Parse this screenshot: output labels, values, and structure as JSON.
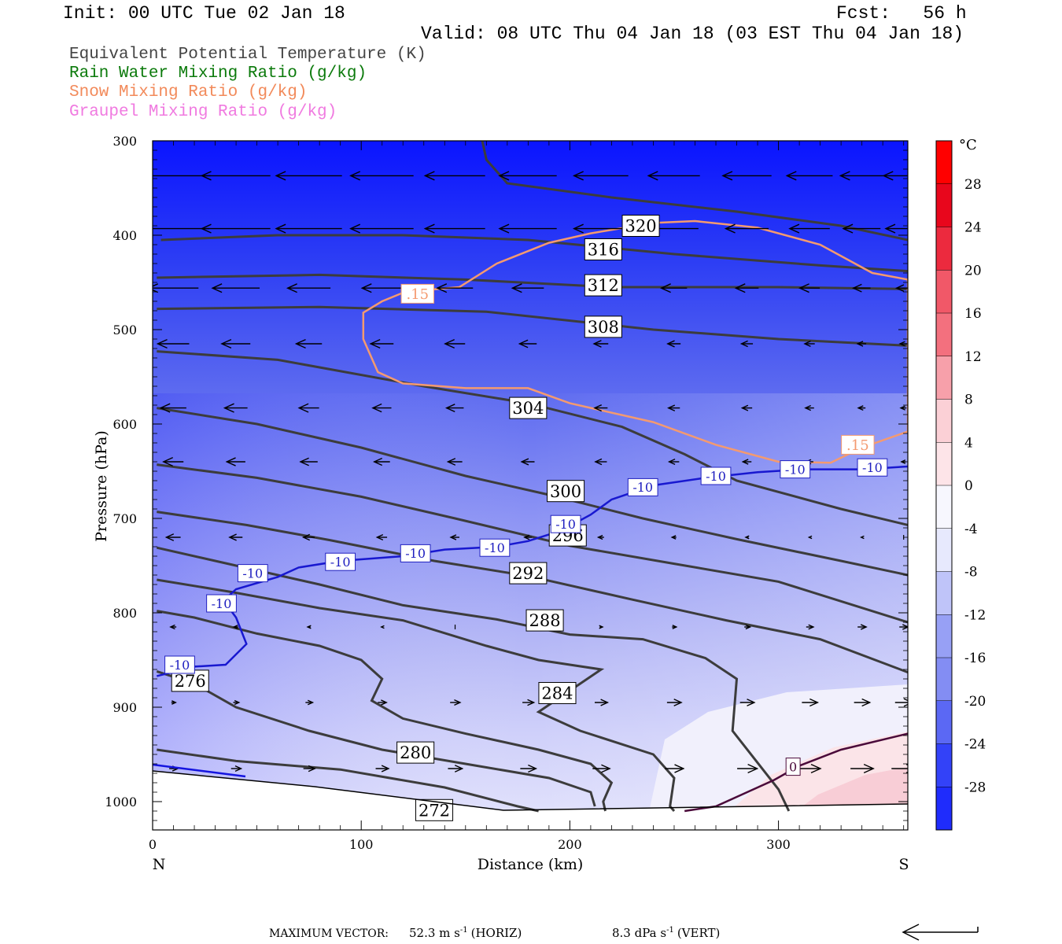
{
  "header": {
    "init": "Init: 00 UTC Tue 02 Jan 18",
    "fcst": "Fcst:   56 h",
    "valid": "Valid: 08 UTC Thu 04 Jan 18 (03 EST Thu 04 Jan 18)"
  },
  "legend": [
    {
      "label": "Equivalent Potential Temperature (K)",
      "color": "#444444"
    },
    {
      "label": "Rain Water Mixing Ratio (g/kg)",
      "color": "#0b7a0b"
    },
    {
      "label": "Snow Mixing Ratio (g/kg)",
      "color": "#f28a5a"
    },
    {
      "label": "Graupel Mixing Ratio (g/kg)",
      "color": "#f07ae0"
    }
  ],
  "footer": {
    "max_vector_label": "MAXIMUM VECTOR:",
    "horiz_value": "52.3 m s",
    "horiz_unit": "(HORIZ)",
    "vert_value": "8.3 dPa s",
    "vert_unit": "(VERT)",
    "exponent": "-1"
  },
  "chart_data": {
    "type": "contour-cross-section",
    "xlabel": "Distance (km)",
    "ylabel": "Pressure (hPa)",
    "xlim": [
      0,
      362
    ],
    "ylim": [
      1030,
      300
    ],
    "x_ticks": [
      0,
      100,
      200,
      300
    ],
    "y_ticks": [
      300,
      400,
      500,
      600,
      700,
      800,
      900,
      1000
    ],
    "x_end_labels": {
      "left": "N",
      "right": "S"
    },
    "colorbar": {
      "unit": "°C",
      "range": [
        -32,
        32
      ],
      "tick_labels": [
        28,
        24,
        20,
        16,
        12,
        8,
        4,
        0,
        -4,
        -8,
        -12,
        -16,
        -20,
        -24,
        -28
      ]
    },
    "theta_e_contours": [
      {
        "label": "320",
        "label_at": [
          234,
          390
        ],
        "points": [
          [
            158,
            300
          ],
          [
            160,
            320
          ],
          [
            170,
            345
          ],
          [
            220,
            360
          ],
          [
            280,
            375
          ],
          [
            330,
            390
          ],
          [
            362,
            405
          ]
        ]
      },
      {
        "label": "316",
        "label_at": [
          216,
          415
        ],
        "points": [
          [
            4,
            405
          ],
          [
            60,
            400
          ],
          [
            120,
            400
          ],
          [
            180,
            405
          ],
          [
            250,
            420
          ],
          [
            320,
            432
          ],
          [
            362,
            438
          ]
        ]
      },
      {
        "label": "312",
        "label_at": [
          216,
          453
        ],
        "points": [
          [
            2,
            445
          ],
          [
            80,
            442
          ],
          [
            150,
            447
          ],
          [
            220,
            455
          ],
          [
            300,
            455
          ],
          [
            362,
            457
          ]
        ]
      },
      {
        "label": "308",
        "label_at": [
          216,
          497
        ],
        "points": [
          [
            2,
            478
          ],
          [
            80,
            476
          ],
          [
            160,
            481
          ],
          [
            240,
            500
          ],
          [
            300,
            510
          ],
          [
            362,
            517
          ]
        ]
      },
      {
        "label": "304",
        "label_at": [
          180,
          583
        ],
        "points": [
          [
            2,
            523
          ],
          [
            60,
            532
          ],
          [
            130,
            560
          ],
          [
            180,
            578
          ],
          [
            225,
            603
          ],
          [
            255,
            632
          ],
          [
            280,
            660
          ],
          [
            330,
            690
          ],
          [
            362,
            707
          ]
        ]
      },
      {
        "label": "300",
        "label_at": [
          198,
          671
        ],
        "points": [
          [
            2,
            583
          ],
          [
            50,
            600
          ],
          [
            100,
            625
          ],
          [
            150,
            655
          ],
          [
            190,
            675
          ],
          [
            235,
            700
          ],
          [
            280,
            722
          ],
          [
            330,
            745
          ],
          [
            362,
            760
          ]
        ]
      },
      {
        "label": "296",
        "label_at": [
          199,
          718
        ],
        "points": [
          [
            2,
            643
          ],
          [
            50,
            657
          ],
          [
            100,
            677
          ],
          [
            145,
            700
          ],
          [
            200,
            729
          ],
          [
            250,
            748
          ],
          [
            300,
            767
          ],
          [
            362,
            810
          ]
        ]
      },
      {
        "label": "292",
        "label_at": [
          180,
          758
        ],
        "points": [
          [
            2,
            693
          ],
          [
            45,
            707
          ],
          [
            85,
            723
          ],
          [
            135,
            745
          ],
          [
            180,
            761
          ],
          [
            230,
            786
          ],
          [
            275,
            808
          ],
          [
            320,
            828
          ],
          [
            362,
            863
          ]
        ]
      },
      {
        "label": "288",
        "label_at": [
          188,
          808
        ],
        "points": [
          [
            2,
            731
          ],
          [
            40,
            750
          ],
          [
            80,
            770
          ],
          [
            120,
            792
          ],
          [
            165,
            807
          ],
          [
            200,
            823
          ],
          [
            235,
            828
          ],
          [
            265,
            848
          ],
          [
            280,
            870
          ],
          [
            278,
            925
          ],
          [
            300,
            987
          ],
          [
            305,
            1010
          ]
        ]
      },
      {
        "label": "284",
        "label_at": [
          194,
          885
        ],
        "points": [
          [
            2,
            765
          ],
          [
            38,
            778
          ],
          [
            80,
            795
          ],
          [
            120,
            808
          ],
          [
            160,
            835
          ],
          [
            185,
            850
          ],
          [
            200,
            855
          ],
          [
            215,
            860
          ],
          [
            205,
            875
          ],
          [
            185,
            905
          ],
          [
            205,
            925
          ],
          [
            240,
            950
          ],
          [
            250,
            975
          ],
          [
            248,
            1005
          ],
          [
            250,
            1010
          ]
        ]
      },
      {
        "label": "280",
        "label_at": [
          126,
          948
        ],
        "points": [
          [
            2,
            798
          ],
          [
            20,
            805
          ],
          [
            50,
            822
          ],
          [
            80,
            835
          ],
          [
            100,
            850
          ],
          [
            110,
            870
          ],
          [
            105,
            893
          ],
          [
            120,
            912
          ],
          [
            150,
            928
          ],
          [
            185,
            945
          ],
          [
            210,
            960
          ],
          [
            220,
            980
          ],
          [
            216,
            1000
          ],
          [
            217,
            1010
          ]
        ]
      },
      {
        "label": "276",
        "label_at": [
          18,
          872
        ],
        "points": [
          [
            2,
            862
          ],
          [
            20,
            875
          ],
          [
            40,
            900
          ],
          [
            75,
            925
          ],
          [
            110,
            945
          ],
          [
            150,
            960
          ],
          [
            190,
            975
          ],
          [
            210,
            990
          ],
          [
            212,
            1005
          ]
        ]
      },
      {
        "label": "272",
        "label_at": [
          135,
          1009
        ],
        "points": [
          [
            2,
            945
          ],
          [
            40,
            957
          ],
          [
            90,
            966
          ],
          [
            140,
            985
          ],
          [
            175,
            1005
          ],
          [
            185,
            1010
          ]
        ]
      }
    ],
    "temperature_minus10_contour": {
      "label": "-10",
      "points": [
        [
          2,
          867
        ],
        [
          20,
          857
        ],
        [
          35,
          855
        ],
        [
          45,
          833
        ],
        [
          40,
          805
        ],
        [
          34,
          787
        ],
        [
          40,
          775
        ],
        [
          60,
          762
        ],
        [
          70,
          752
        ],
        [
          90,
          745
        ],
        [
          120,
          740
        ],
        [
          140,
          733
        ],
        [
          165,
          730
        ],
        [
          180,
          724
        ],
        [
          190,
          717
        ],
        [
          200,
          708
        ],
        [
          210,
          696
        ],
        [
          220,
          680
        ],
        [
          240,
          665
        ],
        [
          265,
          657
        ],
        [
          290,
          651
        ],
        [
          312,
          648
        ],
        [
          340,
          648
        ],
        [
          362,
          645
        ]
      ],
      "label_at": [
        [
          13,
          855
        ],
        [
          33,
          790
        ],
        [
          48,
          758
        ],
        [
          90,
          746
        ],
        [
          126,
          737
        ],
        [
          164,
          731
        ],
        [
          198,
          706
        ],
        [
          235,
          667
        ],
        [
          270,
          655
        ],
        [
          308,
          648
        ],
        [
          345,
          646
        ]
      ]
    },
    "temperature_zero_contour": {
      "label": "0",
      "label_at": [
        307,
        963
      ],
      "points": [
        [
          255,
          1010
        ],
        [
          270,
          1005
        ],
        [
          285,
          990
        ],
        [
          298,
          977
        ],
        [
          310,
          962
        ],
        [
          330,
          945
        ],
        [
          362,
          928
        ]
      ]
    },
    "snow_015_contour": {
      "label": ".15",
      "label_at": [
        [
          127,
          462
        ],
        [
          338,
          622
        ]
      ],
      "points": [
        [
          121,
          460
        ],
        [
          147,
          455
        ],
        [
          165,
          430
        ],
        [
          190,
          408
        ],
        [
          210,
          398
        ],
        [
          240,
          387
        ],
        [
          260,
          385
        ],
        [
          290,
          392
        ],
        [
          320,
          410
        ],
        [
          345,
          440
        ],
        [
          362,
          447
        ],
        [
          362,
          608
        ],
        [
          340,
          625
        ],
        [
          325,
          641
        ],
        [
          300,
          640
        ],
        [
          270,
          622
        ],
        [
          240,
          598
        ],
        [
          200,
          578
        ],
        [
          180,
          562
        ],
        [
          150,
          562
        ],
        [
          120,
          557
        ],
        [
          108,
          545
        ],
        [
          101,
          510
        ],
        [
          101,
          482
        ],
        [
          110,
          470
        ],
        [
          121,
          460
        ]
      ]
    },
    "wind_vectors": {
      "scale_note": "MAXIMUM VECTOR: 52.3 m s-1 (HORIZ), 8.3 dPa s-1 (VERT)",
      "rows": [
        {
          "p": 337,
          "u": [
            -52,
            -48,
            -46,
            -44,
            -42,
            -40,
            -38,
            -36,
            -34,
            -32,
            -30,
            -28
          ]
        },
        {
          "p": 393,
          "u": [
            -50,
            -48,
            -46,
            -44,
            -42,
            -40,
            -38,
            -34,
            -30,
            -28,
            -26,
            -25
          ]
        },
        {
          "p": 456,
          "u": [
            -35,
            -33,
            -30,
            -28,
            -25,
            -22,
            -20,
            -18,
            -16,
            -14,
            -12,
            -10
          ]
        },
        {
          "p": 515,
          "u": [
            -22,
            -20,
            -18,
            -16,
            -14,
            -12,
            -10,
            -9,
            -8,
            -7,
            -6,
            -5
          ]
        },
        {
          "p": 583,
          "u": [
            -18,
            -16,
            -14,
            -13,
            -12,
            -10,
            -9,
            -8,
            -7,
            -6,
            -5,
            -4
          ]
        },
        {
          "p": 640,
          "u": [
            -14,
            -13,
            -12,
            -11,
            -10,
            -9,
            -8,
            -7,
            -6,
            -5,
            -4,
            -3
          ]
        },
        {
          "p": 720,
          "u": [
            -10,
            -9,
            -8,
            -7,
            -6,
            -5,
            -4,
            -3,
            -2,
            -1,
            -1,
            0
          ]
        },
        {
          "p": 815,
          "u": [
            -4,
            -3,
            -2,
            -1,
            0,
            1,
            2,
            3,
            4,
            5,
            6,
            6
          ]
        },
        {
          "p": 895,
          "u": [
            3,
            4,
            5,
            6,
            7,
            8,
            9,
            10,
            10,
            11,
            11,
            12
          ]
        },
        {
          "p": 965,
          "u": [
            6,
            7,
            8,
            9,
            10,
            11,
            12,
            13,
            14,
            15,
            16,
            17
          ]
        }
      ]
    }
  }
}
